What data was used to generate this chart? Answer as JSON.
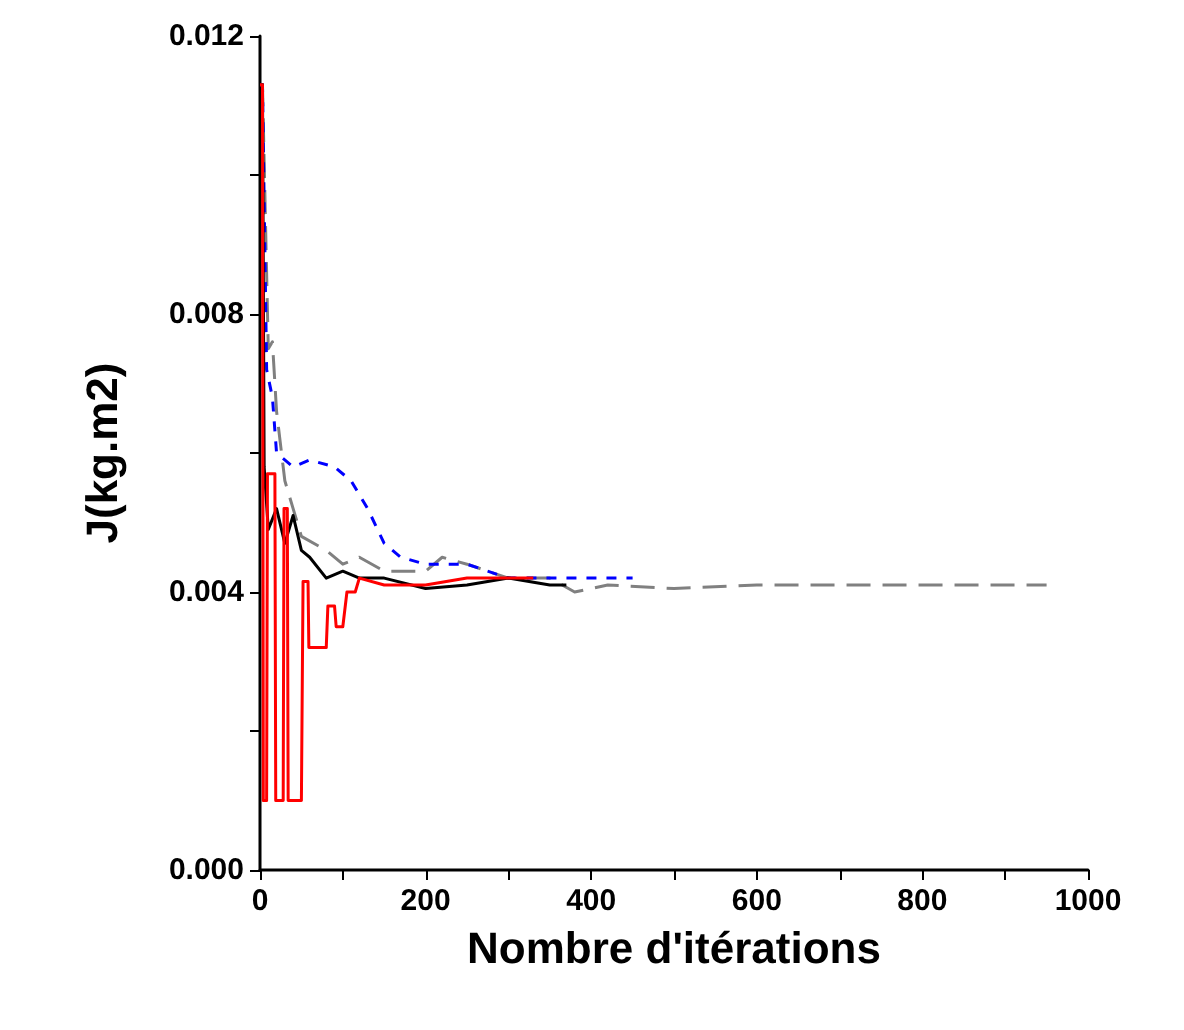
{
  "chart_data": {
    "type": "line",
    "xlabel": "Nombre d'itérations",
    "ylabel": "J(kg.m2)",
    "xlim": [
      0,
      1000
    ],
    "xticks": [
      0,
      {
        "value": 100,
        "label": null
      },
      200,
      {
        "value": 300,
        "label": null
      },
      400,
      {
        "value": 500,
        "label": null
      },
      600,
      {
        "value": 700,
        "label": null
      },
      800,
      {
        "value": 900,
        "label": null
      },
      1000
    ],
    "ylim": [
      0,
      0.012
    ],
    "yticks": [
      {
        "value": 0,
        "label": "0.000"
      },
      {
        "value": 0.002,
        "label": null
      },
      0.004,
      {
        "value": 0.006,
        "label": null
      },
      0.008,
      {
        "value": 0.01,
        "label": null
      },
      0.012
    ],
    "grid": false,
    "marker": "none",
    "series": [
      {
        "color": "#808080",
        "line_style": "dashed",
        "x": [
          0,
          3,
          10,
          15,
          20,
          30,
          40,
          50,
          80,
          100,
          120,
          150,
          200,
          220,
          250,
          300,
          350,
          380,
          420,
          500,
          600,
          700,
          800,
          950
        ],
        "values": [
          0.0113,
          0.0113,
          0.0075,
          0.0076,
          0.0066,
          0.0056,
          0.0052,
          0.0048,
          0.0046,
          0.0044,
          0.0045,
          0.0043,
          0.0043,
          0.0045,
          0.0044,
          0.0042,
          0.0042,
          0.004,
          0.0041,
          0.00405,
          0.0041,
          0.0041,
          0.0041,
          0.0041
        ]
      },
      {
        "color": "#0000ff",
        "line_style": "dotted",
        "x": [
          0,
          3,
          8,
          15,
          20,
          40,
          60,
          90,
          110,
          130,
          150,
          170,
          200,
          250,
          300,
          350,
          400,
          450
        ],
        "values": [
          0.0113,
          0.0113,
          0.0072,
          0.0068,
          0.006,
          0.0058,
          0.0059,
          0.0058,
          0.0056,
          0.0052,
          0.0047,
          0.0045,
          0.0044,
          0.0044,
          0.0042,
          0.0042,
          0.0042,
          0.0042
        ]
      },
      {
        "color": "#000000",
        "line_style": "solid",
        "x": [
          0,
          3,
          5,
          10,
          20,
          30,
          40,
          50,
          60,
          80,
          100,
          120,
          150,
          200,
          250,
          300,
          350,
          370
        ],
        "values": [
          0.0113,
          0.0113,
          0.0058,
          0.0049,
          0.0052,
          0.0047,
          0.0051,
          0.0046,
          0.0045,
          0.0042,
          0.0043,
          0.0042,
          0.0042,
          0.00405,
          0.0041,
          0.0042,
          0.0041,
          0.0041
        ]
      },
      {
        "color": "#ff0000",
        "line_style": "solid",
        "x": [
          0,
          3,
          4,
          8,
          9,
          18,
          19,
          28,
          29,
          33,
          34,
          50,
          52,
          58,
          59,
          80,
          82,
          90,
          92,
          100,
          105,
          115,
          120,
          150,
          200,
          250,
          300,
          330
        ],
        "values": [
          0.0113,
          0.0113,
          0.001,
          0.001,
          0.0057,
          0.0057,
          0.001,
          0.001,
          0.0052,
          0.0052,
          0.001,
          0.001,
          0.00415,
          0.00415,
          0.0032,
          0.0032,
          0.0038,
          0.0038,
          0.0035,
          0.0035,
          0.004,
          0.004,
          0.0042,
          0.0041,
          0.0041,
          0.0042,
          0.0042,
          0.0042
        ]
      }
    ]
  }
}
